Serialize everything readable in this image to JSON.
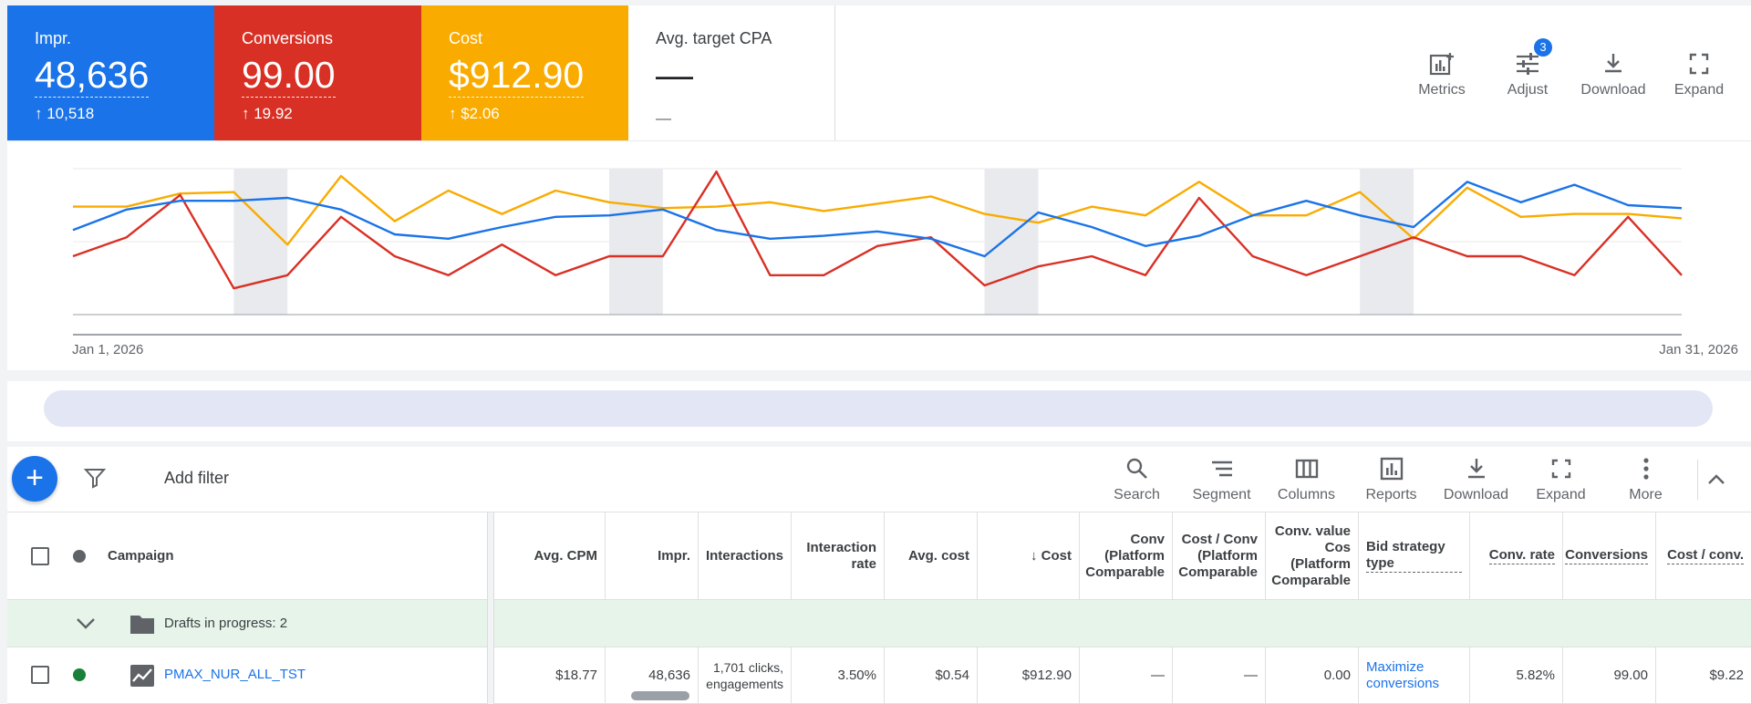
{
  "scorecards": [
    {
      "label": "Impr.",
      "value": "48,636",
      "delta": "↑ 10,518",
      "color": "#1a73e8"
    },
    {
      "label": "Conversions",
      "value": "99.00",
      "delta": "↑ 19.92",
      "color": "#d93025"
    },
    {
      "label": "Cost",
      "value": "$912.90",
      "delta": "↑ $2.06",
      "color": "#f9ab00"
    },
    {
      "label": "Avg. target CPA",
      "value": "—",
      "delta": "—"
    }
  ],
  "top_actions": {
    "metrics": "Metrics",
    "adjust": "Adjust",
    "adjust_badge": "3",
    "download": "Download",
    "expand": "Expand"
  },
  "chart": {
    "start_label": "Jan 1, 2026",
    "end_label": "Jan 31, 2026",
    "series": [
      {
        "name": "Impr.",
        "color": "#1a73e8",
        "values": [
          0.58,
          0.72,
          0.78,
          0.78,
          0.8,
          0.72,
          0.55,
          0.52,
          0.6,
          0.67,
          0.68,
          0.72,
          0.58,
          0.52,
          0.54,
          0.57,
          0.52,
          0.4,
          0.7,
          0.6,
          0.47,
          0.54,
          0.68,
          0.78,
          0.68,
          0.6,
          0.91,
          0.77,
          0.89,
          0.75,
          0.73
        ]
      },
      {
        "name": "Conversions",
        "color": "#d93025",
        "values": [
          0.4,
          0.53,
          0.82,
          0.18,
          0.27,
          0.67,
          0.4,
          0.27,
          0.48,
          0.27,
          0.4,
          0.4,
          0.98,
          0.27,
          0.27,
          0.47,
          0.53,
          0.2,
          0.33,
          0.4,
          0.27,
          0.8,
          0.4,
          0.27,
          0.4,
          0.53,
          0.4,
          0.4,
          0.27,
          0.67,
          0.27
        ]
      },
      {
        "name": "Cost",
        "color": "#f9ab00",
        "values": [
          0.74,
          0.74,
          0.83,
          0.84,
          0.48,
          0.95,
          0.64,
          0.85,
          0.69,
          0.85,
          0.77,
          0.73,
          0.74,
          0.77,
          0.71,
          0.76,
          0.81,
          0.69,
          0.63,
          0.74,
          0.68,
          0.91,
          0.68,
          0.68,
          0.84,
          0.52,
          0.87,
          0.67,
          0.69,
          0.69,
          0.66
        ]
      }
    ],
    "weekend_pairs": [
      3,
      10,
      17,
      24
    ]
  },
  "toolbar": {
    "add_filter": "Add filter",
    "tools": [
      "Search",
      "Segment",
      "Columns",
      "Reports",
      "Download",
      "Expand",
      "More"
    ]
  },
  "table": {
    "headers": {
      "campaign": "Campaign",
      "avg_cpm": "Avg. CPM",
      "impr": "Impr.",
      "interactions": "Interactions",
      "interaction_rate": "Interaction rate",
      "avg_cost": "Avg. cost",
      "cost": "↓  Cost",
      "conv_platform": "Conv (Platform Comparable",
      "cost_conv_platform": "Cost / Conv (Platform Comparable",
      "conv_value_cost": "Conv. value Cos (Platform Comparable",
      "bid_strategy": "Bid strategy type",
      "conv_rate": "Conv. rate",
      "conversions": "Conversions",
      "cost_conv": "Cost / conv."
    },
    "group_row": {
      "label": "Drafts in progress: 2"
    },
    "rows": [
      {
        "campaign": "PMAX_NUR_ALL_TST",
        "avg_cpm": "$18.77",
        "impr": "48,636",
        "interactions": "1,701 clicks, engagements",
        "interaction_rate": "3.50%",
        "avg_cost": "$0.54",
        "cost": "$912.90",
        "conv_platform": "—",
        "cost_conv_platform": "—",
        "conv_value_cost": "0.00",
        "bid_strategy": "Maximize conversions",
        "conv_rate": "5.82%",
        "conversions": "99.00",
        "cost_conv": "$9.22"
      }
    ]
  }
}
